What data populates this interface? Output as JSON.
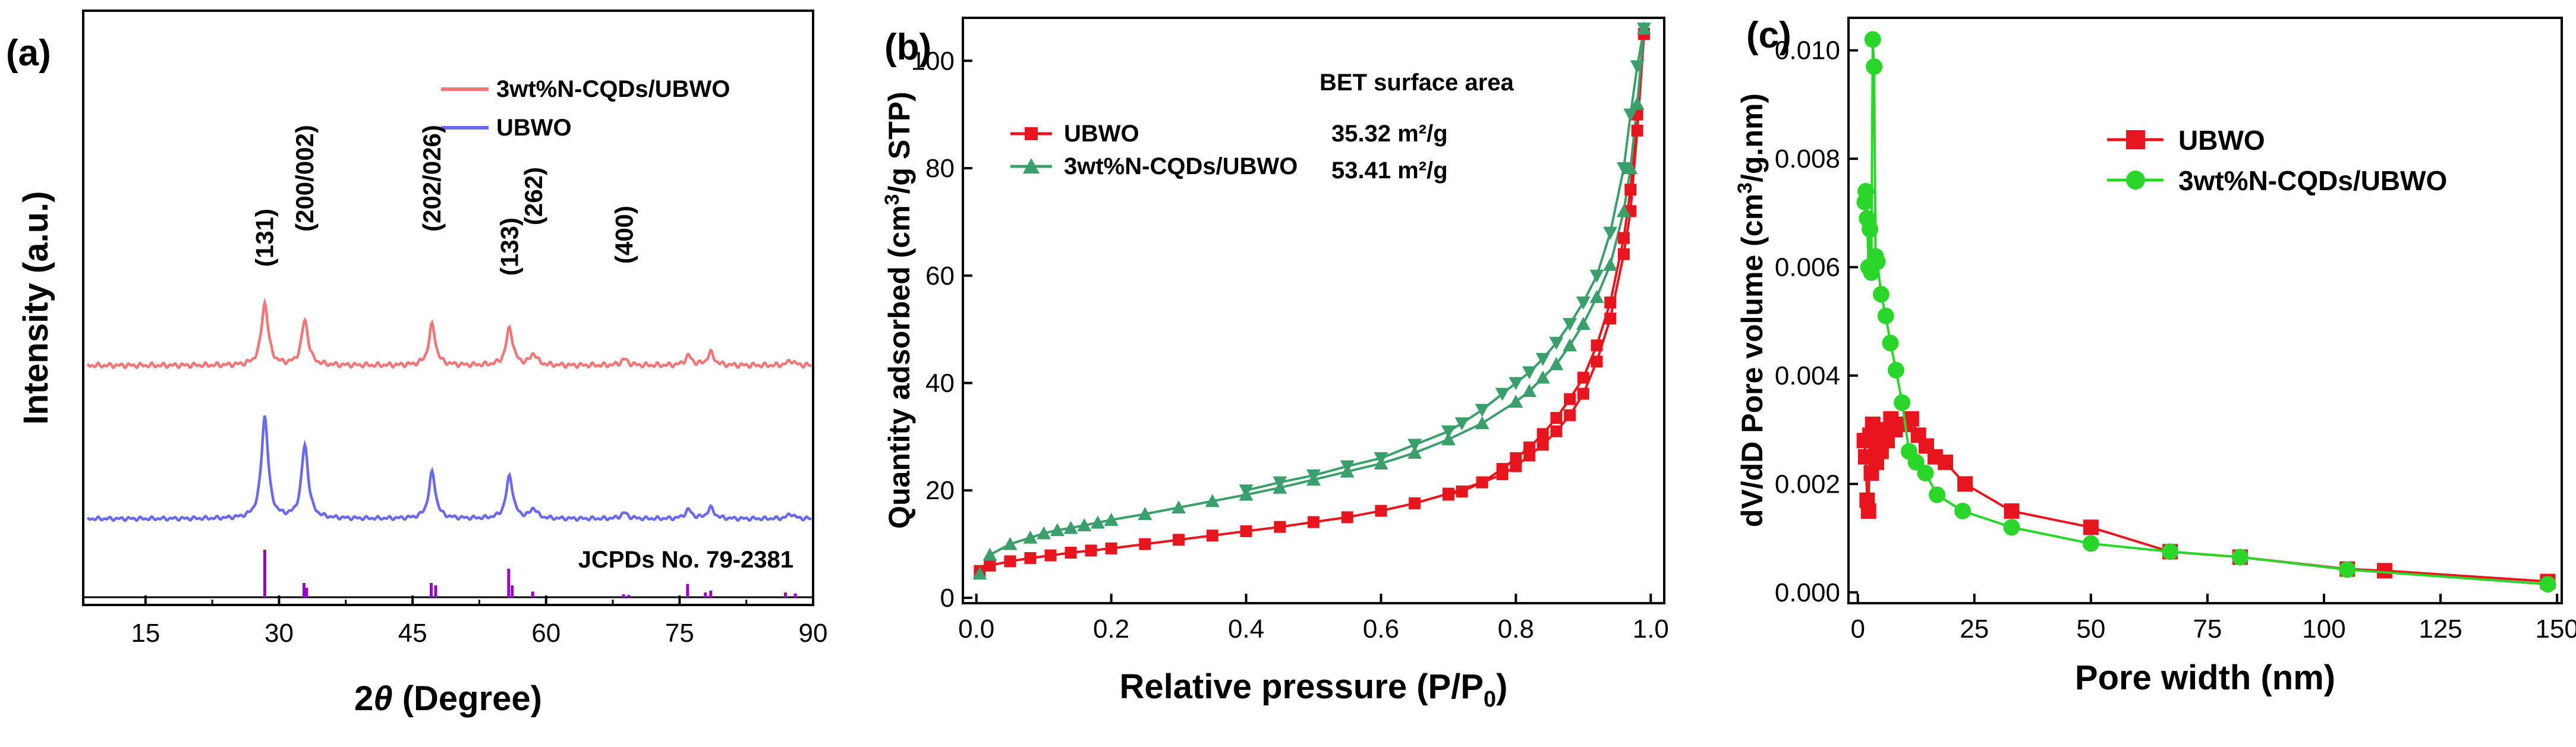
{
  "chart_data": [
    {
      "panel": "(a)",
      "type": "line",
      "xlabel_pre": "2",
      "xlabel_theta": "θ",
      "xlabel_post": " (Degree)",
      "ylabel": "Intensity (a.u.)",
      "xlim": [
        8,
        90
      ],
      "xticks": [
        15,
        30,
        45,
        60,
        75,
        90
      ],
      "legend": [
        "3wt%N-CQDs/UBWO",
        "UBWO"
      ],
      "colors": {
        "ncqd": "#f07878",
        "ubwo": "#6a6aee",
        "ref": "#9900cc"
      },
      "peaks": [
        {
          "label": "(131)",
          "x": 28.4
        },
        {
          "label": "(200/002)",
          "x": 32.9
        },
        {
          "label": "(202/026)",
          "x": 47.2
        },
        {
          "label": "(133)",
          "x": 55.9
        },
        {
          "label": "(262)",
          "x": 58.6
        },
        {
          "label": "(400)",
          "x": 68.8
        }
      ],
      "series": [
        {
          "name": "3wt%N-CQDs/UBWO",
          "baseline": 0,
          "peaks": [
            [
              28.4,
              100
            ],
            [
              32.9,
              72
            ],
            [
              47.2,
              65
            ],
            [
              55.9,
              60
            ],
            [
              58.6,
              18
            ],
            [
              68.8,
              10
            ],
            [
              76,
              15
            ],
            [
              78.5,
              20
            ],
            [
              87.5,
              8
            ]
          ]
        },
        {
          "name": "UBWO",
          "baseline": 0,
          "peaks": [
            [
              28.4,
              210
            ],
            [
              32.9,
              150
            ],
            [
              47.2,
              95
            ],
            [
              55.9,
              88
            ],
            [
              58.6,
              20
            ],
            [
              68.8,
              12
            ],
            [
              76,
              18
            ],
            [
              78.5,
              22
            ],
            [
              87.5,
              10
            ]
          ]
        }
      ],
      "reference": {
        "label": "JCPDs No. 79-2381",
        "lines": [
          [
            28.4,
            100
          ],
          [
            32.8,
            30
          ],
          [
            33.1,
            20
          ],
          [
            47.1,
            30
          ],
          [
            47.6,
            25
          ],
          [
            55.8,
            60
          ],
          [
            56.2,
            25
          ],
          [
            58.5,
            12
          ],
          [
            68.7,
            6
          ],
          [
            69.3,
            5
          ],
          [
            75.9,
            28
          ],
          [
            77.9,
            10
          ],
          [
            78.5,
            14
          ],
          [
            86.9,
            10
          ],
          [
            88.0,
            8
          ]
        ]
      }
    },
    {
      "panel": "(b)",
      "type": "line",
      "xlabel": "Relative pressure (P/P",
      "xlabel_sub": "0",
      "xlabel_end": ")",
      "ylabel_pre": "Quantity adsorbed (cm",
      "ylabel_sup": "3",
      "ylabel_post": "/g STP)",
      "xlim": [
        -0.02,
        1.02
      ],
      "ylim": [
        -1,
        108
      ],
      "xticks": [
        0.0,
        0.2,
        0.4,
        0.6,
        0.8,
        1.0
      ],
      "xtick_labels": [
        "0.0",
        "0.2",
        "0.4",
        "0.6",
        "0.8",
        "1.0"
      ],
      "yticks": [
        0,
        20,
        40,
        60,
        80,
        100
      ],
      "bet_title": "BET surface area",
      "colors": {
        "ubwo": "#e8141e",
        "ncqd": "#3a9f6a"
      },
      "series": [
        {
          "name": "UBWO",
          "bet": "35.32 m²/g",
          "adsorption": {
            "x": [
              0.005,
              0.02,
              0.05,
              0.08,
              0.11,
              0.14,
              0.17,
              0.2,
              0.25,
              0.3,
              0.35,
              0.4,
              0.45,
              0.5,
              0.55,
              0.6,
              0.65,
              0.7,
              0.75,
              0.78,
              0.8,
              0.82,
              0.84,
              0.86,
              0.88,
              0.9,
              0.92,
              0.94,
              0.96,
              0.97,
              0.98,
              0.99
            ],
            "y": [
              5.0,
              6.0,
              6.8,
              7.4,
              7.9,
              8.4,
              8.8,
              9.2,
              10.0,
              10.8,
              11.6,
              12.4,
              13.2,
              14.1,
              15.0,
              16.2,
              17.6,
              19.4,
              21.5,
              23.0,
              24.5,
              26.5,
              28.5,
              31.0,
              34.0,
              38.0,
              44.0,
              52.0,
              64.0,
              72.0,
              87.0,
              105.0
            ]
          },
          "desorption": {
            "x": [
              0.99,
              0.98,
              0.97,
              0.96,
              0.94,
              0.92,
              0.9,
              0.88,
              0.86,
              0.84,
              0.82,
              0.8,
              0.78,
              0.75,
              0.72,
              0.7
            ],
            "y": [
              105.0,
              90.0,
              76.0,
              67.0,
              55.0,
              47.0,
              41.0,
              37.0,
              33.5,
              30.5,
              28.0,
              26.0,
              24.0,
              21.5,
              19.8,
              19.2
            ]
          }
        },
        {
          "name": "3wt%N-CQDs/UBWO",
          "bet": "53.41 m²/g",
          "adsorption": {
            "x": [
              0.005,
              0.02,
              0.05,
              0.08,
              0.1,
              0.12,
              0.14,
              0.16,
              0.18,
              0.2,
              0.25,
              0.3,
              0.35,
              0.4,
              0.45,
              0.5,
              0.55,
              0.6,
              0.65,
              0.7,
              0.75,
              0.8,
              0.82,
              0.84,
              0.86,
              0.88,
              0.9,
              0.92,
              0.94,
              0.96,
              0.97,
              0.98,
              0.99
            ],
            "y": [
              4.5,
              8.0,
              10.0,
              11.2,
              12.0,
              12.6,
              13.0,
              13.5,
              14.0,
              14.5,
              15.6,
              16.8,
              18.0,
              19.2,
              20.5,
              22.0,
              23.5,
              25.0,
              27.0,
              29.5,
              32.5,
              36.5,
              38.5,
              41.0,
              43.5,
              47.0,
              51.0,
              56.0,
              62.0,
              72.0,
              80.0,
              92.0,
              106.0
            ]
          },
          "desorption": {
            "x": [
              0.99,
              0.98,
              0.97,
              0.96,
              0.94,
              0.92,
              0.9,
              0.88,
              0.86,
              0.84,
              0.82,
              0.8,
              0.78,
              0.75,
              0.72,
              0.7,
              0.65,
              0.6,
              0.55,
              0.5,
              0.45,
              0.4
            ],
            "y": [
              106.0,
              99.0,
              90.0,
              80.0,
              68.0,
              60.0,
              55.0,
              51.0,
              47.5,
              44.5,
              42.0,
              40.0,
              38.0,
              35.0,
              32.5,
              31.0,
              28.5,
              26.0,
              24.5,
              22.8,
              21.5,
              20.0
            ]
          }
        }
      ]
    },
    {
      "panel": "(c)",
      "type": "line",
      "xlabel": "Pore width (nm)",
      "ylabel_pre": "dV/dD Pore volume (cm",
      "ylabel_sup": "3",
      "ylabel_post": "/g.nm)",
      "xlim": [
        -2,
        151
      ],
      "ylim": [
        -0.0002,
        0.0106
      ],
      "xticks": [
        0,
        25,
        50,
        75,
        100,
        125,
        150
      ],
      "xtick_labels": [
        "0",
        "25",
        "50",
        "75",
        "100",
        "125",
        "150"
      ],
      "yticks": [
        0.0,
        0.002,
        0.004,
        0.006,
        0.008,
        0.01
      ],
      "ytick_labels": [
        "0.000",
        "0.002",
        "0.004",
        "0.006",
        "0.008",
        "0.010"
      ],
      "colors": {
        "ubwo": "#e8141e",
        "ncqd": "#2ad62a"
      },
      "series": [
        {
          "name": "UBWO",
          "x": [
            1.4,
            1.7,
            2.0,
            2.3,
            2.6,
            2.9,
            3.2,
            3.6,
            4.0,
            4.5,
            5.0,
            5.6,
            6.3,
            7.1,
            8.0,
            9.0,
            10.2,
            11.5,
            13.0,
            14.7,
            16.6,
            18.8,
            23.0,
            33.0,
            50.0,
            67.0,
            82.0,
            105.0,
            113.0,
            148.0
          ],
          "y": [
            0.0028,
            0.0025,
            0.0017,
            0.0015,
            0.0029,
            0.0022,
            0.0031,
            0.0029,
            0.0024,
            0.0027,
            0.0026,
            0.003,
            0.0028,
            0.0032,
            0.003,
            0.0031,
            0.0031,
            0.0032,
            0.0029,
            0.0027,
            0.0025,
            0.0024,
            0.002,
            0.0015,
            0.0012,
            0.00075,
            0.00065,
            0.00043,
            0.0004,
            0.0002
          ]
        },
        {
          "name": "3wt%N-CQDs/UBWO",
          "x": [
            1.5,
            1.7,
            2.0,
            2.3,
            2.6,
            2.9,
            3.2,
            3.5,
            3.8,
            4.2,
            5.0,
            6.0,
            7.0,
            8.2,
            9.5,
            11.0,
            12.5,
            14.5,
            17.0,
            22.5,
            33.0,
            50.0,
            67.0,
            82.0,
            105.0,
            148.0
          ],
          "y": [
            0.0072,
            0.0074,
            0.0069,
            0.006,
            0.0067,
            0.0059,
            0.0102,
            0.0097,
            0.0062,
            0.0061,
            0.0055,
            0.0051,
            0.0046,
            0.0041,
            0.0035,
            0.0026,
            0.0024,
            0.0022,
            0.0018,
            0.0015,
            0.0012,
            0.0009,
            0.00075,
            0.00065,
            0.00042,
            0.00015
          ]
        }
      ]
    }
  ]
}
